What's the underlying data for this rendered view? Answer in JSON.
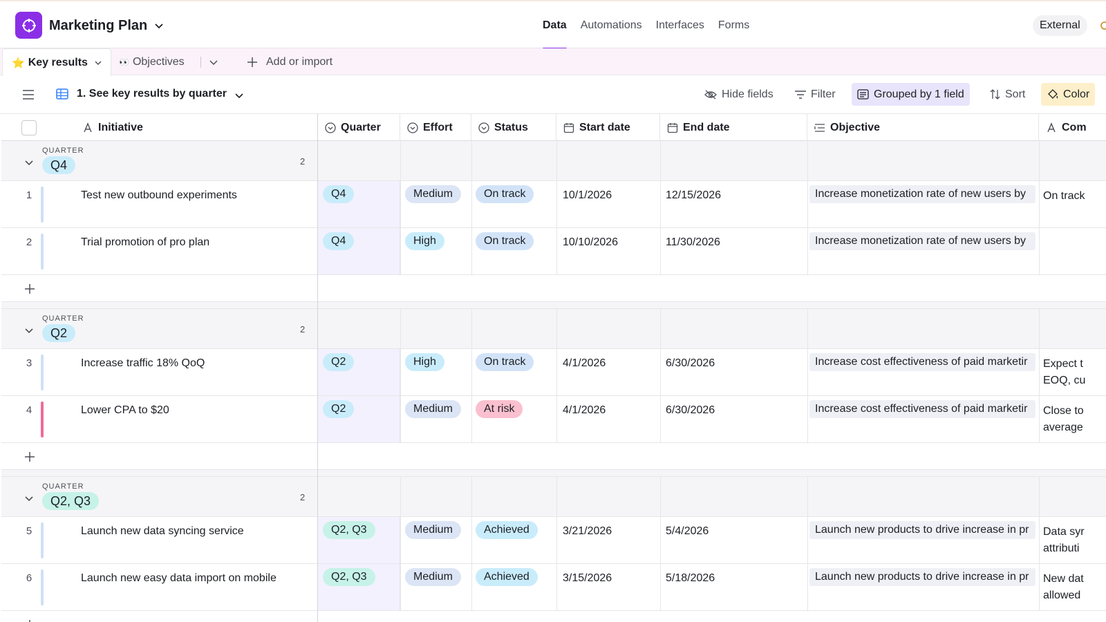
{
  "header": {
    "app_title": "Marketing Plan",
    "nav_tabs": [
      "Data",
      "Automations",
      "Interfaces",
      "Forms"
    ],
    "active_tab": "Data",
    "external_label": "External",
    "brand_color": "#8b2fe6"
  },
  "table_tabs": {
    "active": {
      "icon": "⭐",
      "label": "Key results"
    },
    "second": {
      "icon": "👀",
      "label": "Objectives"
    },
    "add_label": "Add or import"
  },
  "viewbar": {
    "view_name": "1. See key results by quarter",
    "hide_fields": "Hide fields",
    "filter": "Filter",
    "grouped": "Grouped by 1 field",
    "sort": "Sort",
    "color": "Color"
  },
  "columns": {
    "initiative": "Initiative",
    "quarter": "Quarter",
    "effort": "Effort",
    "status": "Status",
    "start_date": "Start date",
    "end_date": "End date",
    "objective": "Objective",
    "comment": "Com"
  },
  "groups": [
    {
      "kicker": "QUARTER",
      "label": "Q4",
      "count": "2",
      "rows": [
        {
          "num": "1",
          "initiative": "Test new outbound experiments",
          "quarter": "Q4",
          "effort": "Medium",
          "status": "On track",
          "start": "10/1/2026",
          "end": "12/15/2026",
          "objective": "Increase monetization rate of new users by",
          "comment": "On track"
        },
        {
          "num": "2",
          "initiative": "Trial promotion of pro plan",
          "quarter": "Q4",
          "effort": "High",
          "status": "On track",
          "start": "10/10/2026",
          "end": "11/30/2026",
          "objective": "Increase monetization rate of new users by",
          "comment": ""
        }
      ]
    },
    {
      "kicker": "QUARTER",
      "label": "Q2",
      "count": "2",
      "rows": [
        {
          "num": "3",
          "initiative": "Increase traffic 18% QoQ",
          "quarter": "Q2",
          "effort": "High",
          "status": "On track",
          "start": "4/1/2026",
          "end": "6/30/2026",
          "objective": "Increase cost effectiveness of paid marketir",
          "comment": "Expect t\nEOQ, cu"
        },
        {
          "num": "4",
          "initiative": "Lower CPA to $20",
          "quarter": "Q2",
          "effort": "Medium",
          "status": "At risk",
          "start": "4/1/2026",
          "end": "6/30/2026",
          "objective": "Increase cost effectiveness of paid marketir",
          "comment": "Close to\naverage"
        }
      ]
    },
    {
      "kicker": "QUARTER",
      "label": "Q2, Q3",
      "count": "2",
      "rows": [
        {
          "num": "5",
          "initiative": "Launch new data syncing service",
          "quarter": "Q2, Q3",
          "effort": "Medium",
          "status": "Achieved",
          "start": "3/21/2026",
          "end": "5/4/2026",
          "objective": "Launch new products to drive increase in pr",
          "comment": "Data syr\nattributi"
        },
        {
          "num": "6",
          "initiative": "Launch new easy data import on mobile",
          "quarter": "Q2, Q3",
          "effort": "Medium",
          "status": "Achieved",
          "start": "3/15/2026",
          "end": "5/18/2026",
          "objective": "Launch new products to drive increase in pr",
          "comment": "New dat\nallowed"
        }
      ]
    }
  ],
  "row_bar_colors": {
    "default": "#cfe0f6",
    "at_risk": "#f06b95"
  }
}
